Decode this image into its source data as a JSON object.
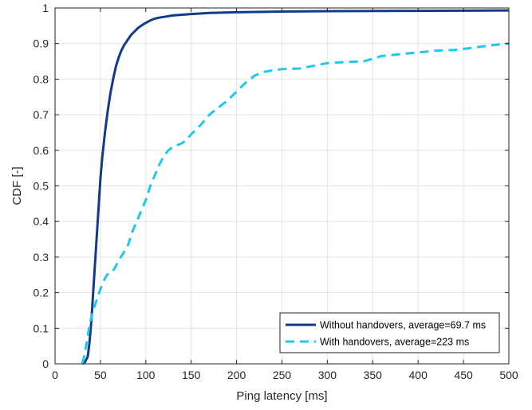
{
  "chart_data": {
    "type": "line",
    "title": "",
    "xlabel": "Ping latency [ms]",
    "ylabel": "CDF [-]",
    "xlim": [
      0,
      500
    ],
    "ylim": [
      0,
      1
    ],
    "xticks": [
      0,
      50,
      100,
      150,
      200,
      250,
      300,
      350,
      400,
      450,
      500
    ],
    "yticks": [
      0,
      0.1,
      0.2,
      0.3,
      0.4,
      0.5,
      0.6,
      0.7,
      0.8,
      0.9,
      1
    ],
    "xtick_labels": [
      "0",
      "50",
      "100",
      "150",
      "200",
      "250",
      "300",
      "350",
      "400",
      "450",
      "500"
    ],
    "ytick_labels": [
      "0",
      "0.1",
      "0.2",
      "0.3",
      "0.4",
      "0.5",
      "0.6",
      "0.7",
      "0.8",
      "0.9",
      "1"
    ],
    "grid": true,
    "legend_position": "bottom-right",
    "series": [
      {
        "name": "Without handovers, average=69.7 ms",
        "color": "#123a8a",
        "style": "solid",
        "x": [
          30,
          33,
          36,
          38,
          40,
          42,
          44,
          46,
          48,
          50,
          52,
          55,
          58,
          61,
          64,
          67,
          70,
          73,
          76,
          80,
          84,
          88,
          92,
          96,
          100,
          105,
          110,
          115,
          120,
          130,
          140,
          150,
          170,
          200,
          250,
          300,
          400,
          500
        ],
        "y": [
          0,
          0.005,
          0.02,
          0.06,
          0.12,
          0.2,
          0.28,
          0.36,
          0.44,
          0.52,
          0.58,
          0.65,
          0.71,
          0.76,
          0.8,
          0.835,
          0.86,
          0.88,
          0.895,
          0.91,
          0.925,
          0.935,
          0.945,
          0.952,
          0.958,
          0.965,
          0.97,
          0.973,
          0.975,
          0.979,
          0.981,
          0.983,
          0.986,
          0.988,
          0.99,
          0.991,
          0.992,
          0.993
        ]
      },
      {
        "name": "With handovers, average=223 ms",
        "color": "#1ec8f0",
        "style": "dashed",
        "x": [
          30,
          32,
          35,
          38,
          42,
          46,
          50,
          55,
          60,
          65,
          70,
          75,
          80,
          85,
          90,
          95,
          100,
          105,
          110,
          115,
          120,
          125,
          130,
          135,
          140,
          145,
          150,
          160,
          170,
          180,
          190,
          200,
          210,
          220,
          230,
          240,
          250,
          270,
          290,
          300,
          320,
          340,
          360,
          380,
          400,
          420,
          440,
          460,
          480,
          500
        ],
        "y": [
          0,
          0.02,
          0.06,
          0.11,
          0.15,
          0.18,
          0.21,
          0.24,
          0.26,
          0.265,
          0.29,
          0.31,
          0.33,
          0.37,
          0.4,
          0.43,
          0.46,
          0.5,
          0.53,
          0.56,
          0.585,
          0.6,
          0.61,
          0.615,
          0.62,
          0.63,
          0.645,
          0.67,
          0.7,
          0.72,
          0.74,
          0.765,
          0.79,
          0.81,
          0.82,
          0.825,
          0.828,
          0.83,
          0.84,
          0.845,
          0.848,
          0.85,
          0.865,
          0.87,
          0.875,
          0.88,
          0.882,
          0.888,
          0.895,
          0.9
        ]
      }
    ]
  }
}
